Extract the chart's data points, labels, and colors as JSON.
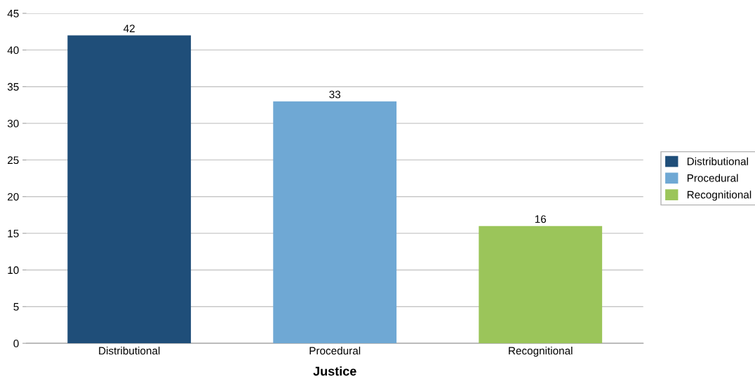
{
  "chart_data": {
    "type": "bar",
    "xlabel": "Justice",
    "categories": [
      "Distributional",
      "Procedural",
      "Recognitional"
    ],
    "series": [
      {
        "name": "Distributional",
        "color": "#1f4e79",
        "values": [
          42,
          null,
          null
        ]
      },
      {
        "name": "Procedural",
        "color": "#6fa8d4",
        "values": [
          null,
          33,
          null
        ]
      },
      {
        "name": "Recognitional",
        "color": "#9bc55a",
        "values": [
          null,
          null,
          16
        ]
      }
    ],
    "ylim": [
      0,
      45
    ],
    "yticks": [
      0,
      5,
      10,
      15,
      20,
      25,
      30,
      35,
      40,
      45
    ],
    "grid": "y",
    "legend": "right",
    "data_labels": true
  }
}
